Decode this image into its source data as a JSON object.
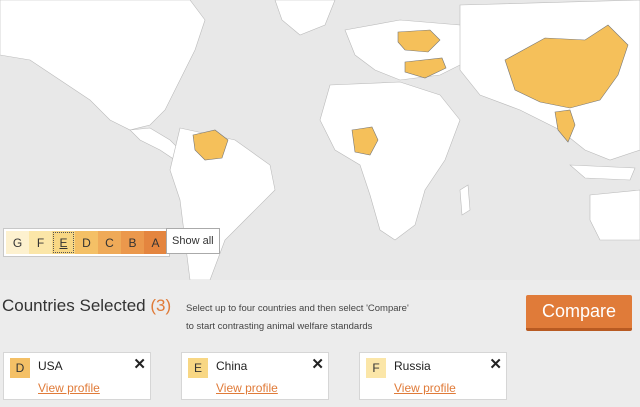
{
  "legend": {
    "grades": [
      {
        "label": "G",
        "color": "#fdf1cf"
      },
      {
        "label": "F",
        "color": "#fbe6a8"
      },
      {
        "label": "E",
        "color": "#f8d784",
        "active": true
      },
      {
        "label": "D",
        "color": "#f4c066"
      },
      {
        "label": "C",
        "color": "#efaa58"
      },
      {
        "label": "B",
        "color": "#eb984c"
      },
      {
        "label": "A",
        "color": "#e4853f"
      }
    ],
    "show_all_label": "Show all"
  },
  "selection": {
    "title": "Countries Selected",
    "count": "(3)",
    "instructions_line1": "Select up to four countries and then select 'Compare'",
    "instructions_line2": "to start contrasting animal welfare standards",
    "compare_label": "Compare"
  },
  "cards": [
    {
      "grade": "D",
      "grade_color": "#f4c066",
      "name": "USA",
      "profile_label": "View profile",
      "close_symbol": "✕"
    },
    {
      "grade": "E",
      "grade_color": "#f8d784",
      "name": "China",
      "profile_label": "View profile",
      "close_symbol": "✕"
    },
    {
      "grade": "F",
      "grade_color": "#fbe6a8",
      "name": "Russia",
      "profile_label": "View profile",
      "close_symbol": "✕"
    }
  ],
  "colors": {
    "accent": "#e07b39",
    "highlight_country": "#f5c05a"
  }
}
